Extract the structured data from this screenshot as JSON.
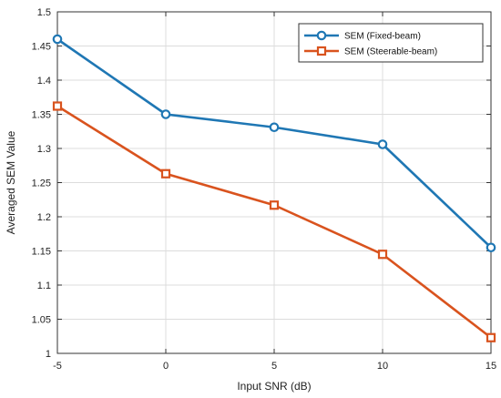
{
  "chart_data": {
    "type": "line",
    "title": "",
    "xlabel": "Input SNR (dB)",
    "ylabel": "Averaged SEM Value",
    "x": [
      -5,
      0,
      5,
      10,
      15
    ],
    "xlim": [
      -5,
      15
    ],
    "ylim": [
      1,
      1.5
    ],
    "xticks": [
      -5,
      0,
      5,
      10,
      15
    ],
    "yticks": [
      1,
      1.05,
      1.1,
      1.15,
      1.2,
      1.25,
      1.3,
      1.35,
      1.4,
      1.45,
      1.5
    ],
    "xtick_labels": [
      "-5",
      "0",
      "5",
      "10",
      "15"
    ],
    "ytick_labels": [
      "1",
      "1.05",
      "1.1",
      "1.15",
      "1.2",
      "1.25",
      "1.3",
      "1.35",
      "1.4",
      "1.45",
      "1.5"
    ],
    "grid": true,
    "legend_position": "top-right",
    "series": [
      {
        "name": "SEM (Fixed-beam)",
        "values": [
          1.46,
          1.35,
          1.331,
          1.306,
          1.155
        ],
        "color": "#1f77b4",
        "marker": "circle"
      },
      {
        "name": "SEM (Steerable-beam)",
        "values": [
          1.362,
          1.263,
          1.217,
          1.145,
          1.023
        ],
        "color": "#d9531e",
        "marker": "square"
      }
    ]
  }
}
